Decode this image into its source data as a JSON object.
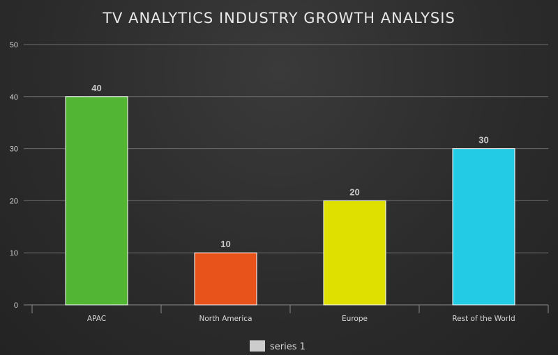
{
  "chart_data": {
    "type": "bar",
    "title": "TV ANALYTICS INDUSTRY GROWTH ANALYSIS",
    "xlabel": "",
    "ylabel": "",
    "categories": [
      "APAC",
      "North America",
      "Europe",
      "Rest of the World"
    ],
    "series": [
      {
        "name": "series 1",
        "values": [
          40,
          10,
          20,
          30
        ]
      }
    ],
    "bar_colors": [
      "#52b534",
      "#e8531c",
      "#dfe000",
      "#24cbe5"
    ],
    "ylim": [
      0,
      50
    ],
    "yticks": [
      0,
      10,
      20,
      30,
      40,
      50
    ],
    "grid": true,
    "data_labels": true,
    "legend": "bottom-center",
    "legend_color": "#cccccc"
  }
}
